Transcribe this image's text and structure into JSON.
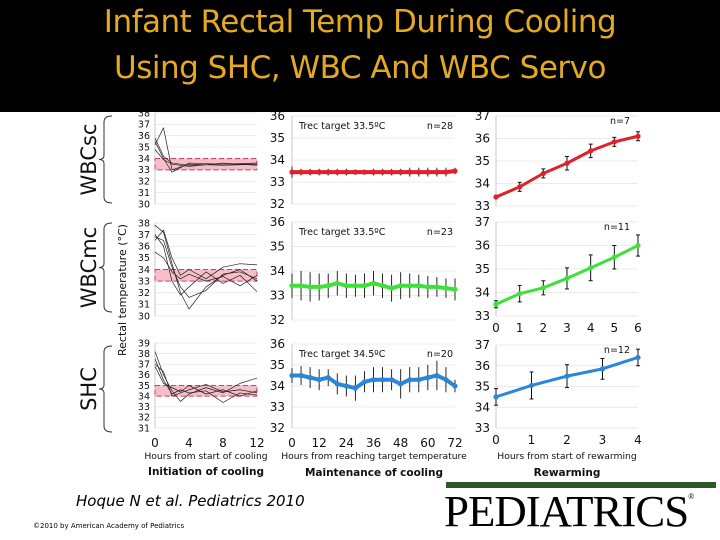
{
  "title": {
    "line1": "Infant Rectal Temp During Cooling",
    "line2": "Using SHC, WBC And WBC Servo"
  },
  "citation": "Hoque N et al. Pediatrics 2010",
  "copyright": "©2010 by American Academy of Pediatrics",
  "logo_text": "PEDIATRICS",
  "colors": {
    "title": "#e3a922",
    "WBCsc": "#e0202a",
    "WBCmc": "#3ee03a",
    "SHC": "#2a86d8",
    "target_band": "#f4a8b8",
    "logo_bar": "#2c5a25"
  },
  "chart_data": {
    "type": "line",
    "ylabel": "Rectal temperature (°C)",
    "row_labels": [
      "WBCsc",
      "WBCmc",
      "SHC"
    ],
    "columns": [
      {
        "title": "Initiation of cooling",
        "xlabel": "Hours from start of cooling",
        "xticks": [
          0,
          4,
          8,
          12
        ],
        "xlim": [
          0,
          12
        ]
      },
      {
        "title": "Maintenance of cooling",
        "xlabel": "Hours from reaching target temperature",
        "xticks": [
          0,
          12,
          24,
          36,
          48,
          60,
          72
        ],
        "xlim": [
          0,
          72
        ]
      },
      {
        "title": "Rewarming",
        "xlabel": "Hours from start of rewarming",
        "xticks": [
          0,
          1,
          2,
          3,
          4
        ],
        "xlim": [
          0,
          4
        ]
      }
    ],
    "initiation": [
      {
        "group": "WBCsc",
        "ylim": [
          30,
          38
        ],
        "yticks": [
          30,
          31,
          32,
          33,
          34,
          35,
          36,
          37,
          38
        ],
        "target_band": [
          33,
          34
        ],
        "traces": [
          {
            "x": [
              0,
              1,
              2,
              4,
              8,
              12
            ],
            "y": [
              35.8,
              34.2,
              33.6,
              33.4,
              33.5,
              33.6
            ]
          },
          {
            "x": [
              0,
              1,
              2,
              4,
              8,
              12
            ],
            "y": [
              35.2,
              36.7,
              33.0,
              33.5,
              33.4,
              33.5
            ]
          },
          {
            "x": [
              0,
              1,
              2,
              4,
              8,
              12
            ],
            "y": [
              35.5,
              34.0,
              32.8,
              33.6,
              33.5,
              33.5
            ]
          },
          {
            "x": [
              0,
              1,
              2,
              4,
              8,
              12
            ],
            "y": [
              34.8,
              33.9,
              33.5,
              33.3,
              33.6,
              33.4
            ]
          }
        ]
      },
      {
        "group": "WBCmc",
        "ylim": [
          30,
          38
        ],
        "yticks": [
          30,
          31,
          32,
          33,
          34,
          35,
          36,
          37,
          38
        ],
        "target_band": [
          33,
          34
        ],
        "traces": [
          {
            "x": [
              0,
              1,
              2,
              3,
              4,
              6,
              8,
              10,
              12
            ],
            "y": [
              37.8,
              37.2,
              34.5,
              32.0,
              30.6,
              32.5,
              33.5,
              34.0,
              33.0
            ]
          },
          {
            "x": [
              0,
              1,
              2,
              3,
              4,
              6,
              8,
              10,
              12
            ],
            "y": [
              37.0,
              36.0,
              33.0,
              31.8,
              32.5,
              33.8,
              32.8,
              33.5,
              32.1
            ]
          },
          {
            "x": [
              0,
              1,
              2,
              3,
              4,
              6,
              8,
              10,
              12
            ],
            "y": [
              36.5,
              37.4,
              35.0,
              33.5,
              34.0,
              33.2,
              34.2,
              34.5,
              34.4
            ]
          },
          {
            "x": [
              0,
              1,
              2,
              3,
              4,
              6,
              8,
              10,
              12
            ],
            "y": [
              35.5,
              35.0,
              33.8,
              33.2,
              33.6,
              33.0,
              33.4,
              32.6,
              33.5
            ]
          },
          {
            "x": [
              0,
              1,
              2,
              3,
              4,
              6,
              8,
              10,
              12
            ],
            "y": [
              36.8,
              36.5,
              34.2,
              32.5,
              31.6,
              32.2,
              33.6,
              33.8,
              33.2
            ]
          }
        ]
      },
      {
        "group": "SHC",
        "ylim": [
          31,
          39
        ],
        "yticks": [
          31,
          32,
          33,
          34,
          35,
          36,
          37,
          38,
          39
        ],
        "target_band": [
          34,
          35
        ],
        "traces": [
          {
            "x": [
              0,
              1,
              2,
              3,
              4,
              6,
              8,
              10,
              12
            ],
            "y": [
              38.2,
              36.0,
              34.5,
              33.5,
              34.2,
              34.8,
              34.3,
              35.2,
              35.7
            ]
          },
          {
            "x": [
              0,
              1,
              2,
              3,
              4,
              6,
              8,
              10,
              12
            ],
            "y": [
              37.5,
              35.5,
              34.2,
              34.6,
              34.3,
              34.5,
              33.4,
              34.3,
              34.1
            ]
          },
          {
            "x": [
              0,
              1,
              2,
              3,
              4,
              6,
              8,
              10,
              12
            ],
            "y": [
              36.8,
              35.2,
              34.8,
              34.4,
              35.0,
              34.2,
              34.6,
              34.0,
              34.5
            ]
          },
          {
            "x": [
              0,
              1,
              2,
              3,
              4,
              6,
              8,
              10,
              12
            ],
            "y": [
              37.0,
              36.3,
              34.0,
              34.3,
              34.6,
              35.1,
              34.4,
              34.6,
              34.3
            ]
          }
        ]
      }
    ],
    "maintenance": [
      {
        "group": "WBCsc",
        "annotation": "Trec target 33.5ºC",
        "n": "n=28",
        "ylim": [
          32,
          36
        ],
        "yticks": [
          32,
          33,
          34,
          35,
          36
        ],
        "x": [
          0,
          4,
          8,
          12,
          16,
          20,
          24,
          28,
          32,
          36,
          40,
          44,
          48,
          52,
          56,
          60,
          64,
          68,
          72
        ],
        "y": [
          33.45,
          33.45,
          33.45,
          33.45,
          33.45,
          33.45,
          33.45,
          33.45,
          33.45,
          33.45,
          33.45,
          33.45,
          33.45,
          33.45,
          33.45,
          33.45,
          33.45,
          33.45,
          33.5
        ],
        "err": [
          0.25,
          0.15,
          0.15,
          0.15,
          0.15,
          0.15,
          0.15,
          0.1,
          0.1,
          0.15,
          0.15,
          0.15,
          0.15,
          0.2,
          0.2,
          0.2,
          0.2,
          0.2,
          0.15
        ]
      },
      {
        "group": "WBCmc",
        "annotation": "Trec target 33.5ºC",
        "n": "n=23",
        "ylim": [
          32,
          36
        ],
        "yticks": [
          32,
          33,
          34,
          35,
          36
        ],
        "x": [
          0,
          4,
          8,
          12,
          16,
          20,
          24,
          28,
          32,
          36,
          40,
          44,
          48,
          52,
          56,
          60,
          64,
          68,
          72
        ],
        "y": [
          33.4,
          33.4,
          33.35,
          33.35,
          33.4,
          33.5,
          33.4,
          33.4,
          33.4,
          33.5,
          33.4,
          33.3,
          33.4,
          33.4,
          33.4,
          33.35,
          33.35,
          33.3,
          33.25
        ],
        "err": [
          0.5,
          0.6,
          0.6,
          0.55,
          0.5,
          0.5,
          0.5,
          0.45,
          0.5,
          0.5,
          0.5,
          0.55,
          0.55,
          0.5,
          0.45,
          0.45,
          0.4,
          0.4,
          0.45
        ]
      },
      {
        "group": "SHC",
        "annotation": "Trec target 34.5ºC",
        "n": "n=20",
        "ylim": [
          32,
          36
        ],
        "yticks": [
          32,
          33,
          34,
          35,
          36
        ],
        "x": [
          0,
          4,
          8,
          12,
          16,
          20,
          24,
          28,
          32,
          36,
          40,
          44,
          48,
          52,
          56,
          60,
          64,
          68,
          72
        ],
        "y": [
          34.5,
          34.5,
          34.4,
          34.3,
          34.4,
          34.1,
          34.0,
          33.9,
          34.2,
          34.3,
          34.3,
          34.3,
          34.1,
          34.3,
          34.3,
          34.4,
          34.5,
          34.3,
          34.0
        ],
        "err": [
          0.35,
          0.45,
          0.5,
          0.5,
          0.4,
          0.5,
          0.5,
          0.6,
          0.5,
          0.6,
          0.6,
          0.5,
          0.7,
          0.6,
          0.6,
          0.6,
          0.7,
          0.6,
          0.3
        ]
      }
    ],
    "rewarming": [
      {
        "group": "WBCsc",
        "n": "n=7",
        "ylim": [
          33,
          37
        ],
        "yticks": [
          33,
          34,
          35,
          36,
          37
        ],
        "xlim": [
          0,
          6
        ],
        "xticks": [],
        "x": [
          0,
          1,
          2,
          3,
          4,
          5,
          6
        ],
        "y": [
          33.4,
          33.85,
          34.45,
          34.9,
          35.45,
          35.85,
          36.1
        ],
        "err": [
          0.05,
          0.2,
          0.2,
          0.3,
          0.3,
          0.2,
          0.2
        ]
      },
      {
        "group": "WBCmc",
        "n": "n=11",
        "ylim": [
          33,
          37
        ],
        "yticks": [
          33,
          34,
          35,
          36,
          37
        ],
        "xlim": [
          0,
          6
        ],
        "xticks": [
          0,
          1,
          2,
          3,
          4,
          5,
          6
        ],
        "x": [
          0,
          1,
          2,
          3,
          4,
          5,
          6
        ],
        "y": [
          33.5,
          33.95,
          34.2,
          34.6,
          35.05,
          35.5,
          36.0
        ],
        "err": [
          0.15,
          0.35,
          0.3,
          0.45,
          0.55,
          0.5,
          0.45
        ]
      },
      {
        "group": "SHC",
        "n": "n=12",
        "ylim": [
          33,
          37
        ],
        "yticks": [
          33,
          34,
          35,
          36,
          37
        ],
        "xlim": [
          0,
          4
        ],
        "xticks": [
          0,
          1,
          2,
          3,
          4
        ],
        "x": [
          0,
          1,
          2,
          3,
          4
        ],
        "y": [
          34.5,
          35.05,
          35.5,
          35.85,
          36.4
        ],
        "err": [
          0.4,
          0.65,
          0.55,
          0.5,
          0.4
        ]
      }
    ]
  }
}
